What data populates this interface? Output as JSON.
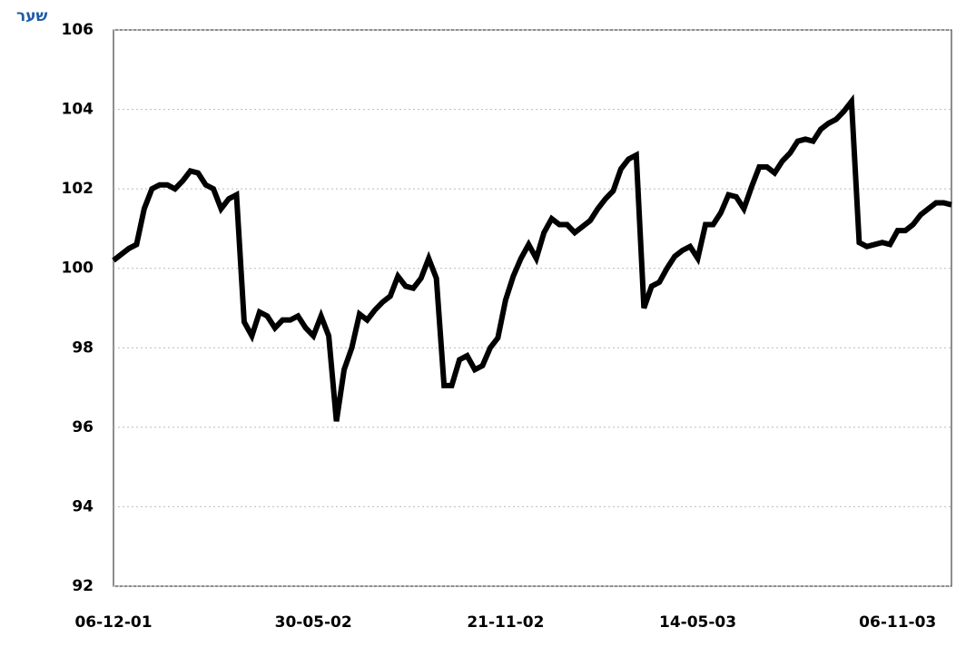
{
  "chart_data": {
    "type": "line",
    "y_label": "שער",
    "categories": [
      "06-12-01",
      null,
      null,
      null,
      null,
      null,
      null,
      null,
      null,
      null,
      null,
      null,
      null,
      null,
      null,
      null,
      null,
      null,
      null,
      null,
      null,
      null,
      null,
      null,
      null,
      null,
      "30-05-02",
      null,
      null,
      null,
      null,
      null,
      null,
      null,
      null,
      null,
      null,
      null,
      null,
      null,
      null,
      null,
      null,
      null,
      null,
      null,
      null,
      null,
      null,
      null,
      null,
      "21-11-02",
      null,
      null,
      null,
      null,
      null,
      null,
      null,
      null,
      null,
      null,
      null,
      null,
      null,
      null,
      null,
      null,
      null,
      null,
      null,
      null,
      null,
      null,
      null,
      null,
      "14-05-03",
      null,
      null,
      null,
      null,
      null,
      null,
      null,
      null,
      null,
      null,
      null,
      null,
      null,
      null,
      null,
      null,
      null,
      null,
      null,
      null,
      null,
      null,
      null,
      null,
      null,
      "06-11-03",
      null,
      null,
      null,
      null,
      null,
      null,
      null
    ],
    "values": [
      100.2,
      100.35,
      100.5,
      100.6,
      101.5,
      102.0,
      102.1,
      102.1,
      102.0,
      102.2,
      102.45,
      102.4,
      102.1,
      102.0,
      101.5,
      101.75,
      101.85,
      98.65,
      98.3,
      98.9,
      98.8,
      98.5,
      98.7,
      98.7,
      98.8,
      98.5,
      98.3,
      98.8,
      98.3,
      96.15,
      97.45,
      98.0,
      98.85,
      98.7,
      98.95,
      99.15,
      99.3,
      99.8,
      99.55,
      99.5,
      99.75,
      100.25,
      99.75,
      97.05,
      97.05,
      97.7,
      97.8,
      97.45,
      97.55,
      98.0,
      98.25,
      99.2,
      99.8,
      100.25,
      100.6,
      100.25,
      100.9,
      101.25,
      101.1,
      101.1,
      100.9,
      101.05,
      101.2,
      101.5,
      101.75,
      101.95,
      102.5,
      102.75,
      102.85,
      99.0,
      99.55,
      99.65,
      100.0,
      100.3,
      100.45,
      100.55,
      100.25,
      101.1,
      101.1,
      101.4,
      101.85,
      101.8,
      101.5,
      102.05,
      102.55,
      102.55,
      102.4,
      102.7,
      102.9,
      103.2,
      103.25,
      103.2,
      103.5,
      103.65,
      103.75,
      103.95,
      104.2,
      100.65,
      100.55,
      100.6,
      100.65,
      100.6,
      100.95,
      100.95,
      101.1,
      101.35,
      101.5,
      101.65,
      101.65,
      101.6
    ],
    "color": "#000000",
    "ylim": [
      92,
      106
    ],
    "yticks": [
      92,
      94,
      96,
      98,
      100,
      102,
      104,
      106
    ],
    "grid": true
  }
}
